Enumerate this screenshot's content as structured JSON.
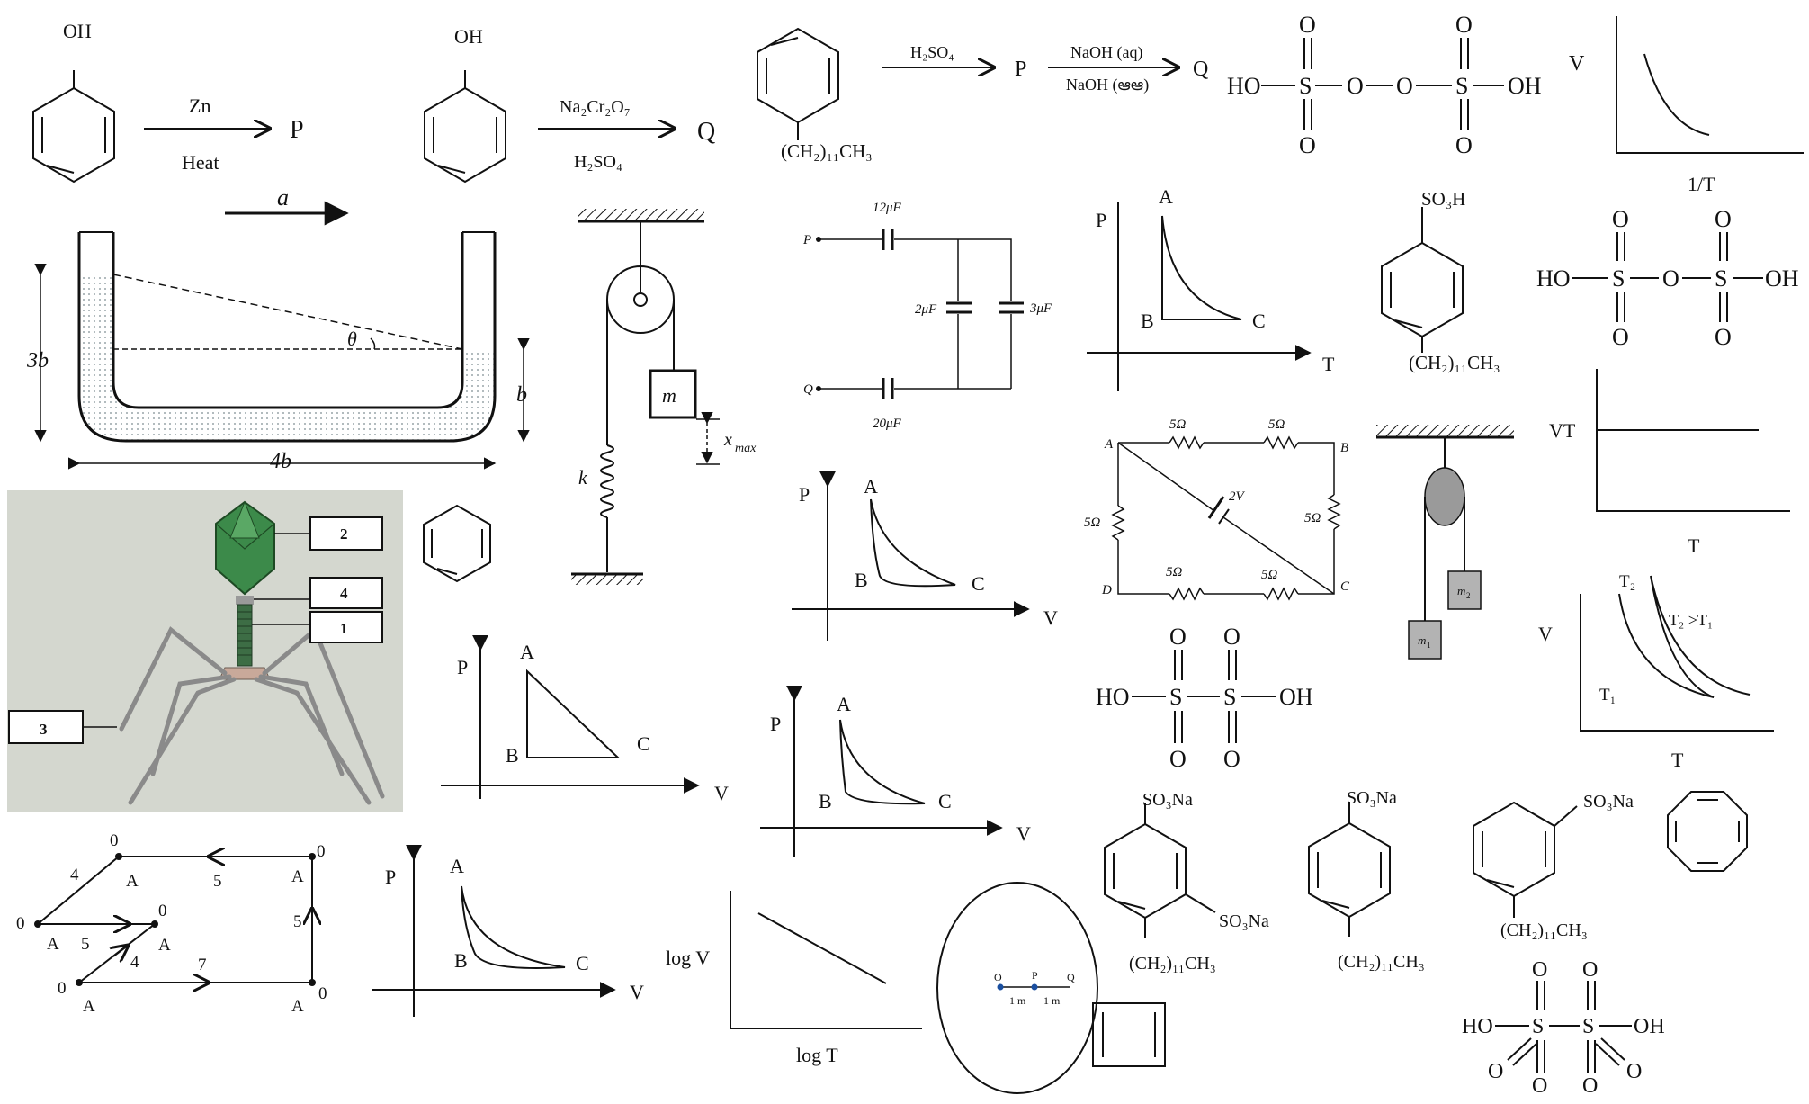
{
  "reactions": {
    "r1": {
      "reactant": "OH",
      "top": "Zn",
      "bottom": "Heat",
      "product": "P"
    },
    "r2": {
      "reactant": "OH",
      "top": "Na₂Cr₂O₇",
      "bottom": "H₂SO₄",
      "product": "Q"
    },
    "r3": {
      "substituent": "(CH₂)₁₁CH₃",
      "reagent": "H₂SO₄",
      "p": "P",
      "top": "NaOH (aq)",
      "bottom": "NaOH (ఆఆ)",
      "q": "Q"
    }
  },
  "sulfur_acids": {
    "peroxy": {
      "ho": "HO",
      "oh": "OH",
      "s": "S",
      "o": "O"
    },
    "pyro": {
      "ho": "HO",
      "oh": "OH",
      "s": "S",
      "o": "O"
    },
    "dithionic1": {
      "ho": "HO",
      "oh": "OH",
      "s": "S",
      "o": "O"
    },
    "dithionic2": {
      "ho": "HO",
      "oh": "OH",
      "s": "S",
      "o": "O"
    }
  },
  "graphs": {
    "v_vs_invT": {
      "y": "V",
      "x": "1/T"
    },
    "vt_vs_t": {
      "y": "VT",
      "x": "T"
    },
    "v_vs_t_isobars": {
      "y": "V",
      "x": "T",
      "t2": "T₂",
      "t1": "T₁",
      "note": "T₂ >T₁"
    },
    "logv_logt": {
      "y": "log V",
      "x": "log T"
    },
    "pt_cycle": {
      "y": "P",
      "x": "T",
      "a": "A",
      "b": "B",
      "c": "C"
    },
    "pv_cycle1": {
      "y": "P",
      "x": "V",
      "a": "A",
      "b": "B",
      "c": "C"
    },
    "pv_triangle": {
      "y": "P",
      "x": "V",
      "a": "A",
      "b": "B",
      "c": "C"
    },
    "pv_cycle2": {
      "y": "P",
      "x": "V",
      "a": "A",
      "b": "B",
      "c": "C"
    },
    "pv_cycle3": {
      "y": "P",
      "x": "V",
      "a": "A",
      "b": "B",
      "c": "C"
    }
  },
  "tube": {
    "accel": "a",
    "h_left": "3b",
    "h_right": "b",
    "width": "4b",
    "angle": "θ"
  },
  "spring_pulley": {
    "mass": "m",
    "spring": "k",
    "disp": "x",
    "disp_sub": "max"
  },
  "capacitors": {
    "p": "P",
    "q": "Q",
    "c1": "12μF",
    "c2": "2μF",
    "c3": "3μF",
    "c4": "20μF"
  },
  "resistor_net": {
    "r": "5Ω",
    "emf": "2V",
    "a": "A",
    "b": "B",
    "c": "C",
    "d": "D"
  },
  "atwood": {
    "m1": "m",
    "m1_sub": "1",
    "m2": "m",
    "m2_sub": "2"
  },
  "sulfonates": {
    "acid": {
      "top": "SO₃H",
      "bottom": "(CH₂)₁₁CH₃"
    },
    "di_sodium": {
      "top": "SO₃Na",
      "side": "SO₃Na",
      "bottom": "(CH₂)₁₁CH₃"
    },
    "para_sodium": {
      "top": "SO₃Na",
      "bottom": "(CH₂)₁₁CH₃"
    },
    "meta_sodium": {
      "top": "SO₃Na",
      "bottom": "(CH₂)₁₁CH₃"
    }
  },
  "phage": {
    "labels": [
      "2",
      "4",
      "1",
      "3"
    ]
  },
  "network_graph": {
    "nodes": [
      "0",
      "0",
      "0",
      "0",
      "0",
      "0"
    ],
    "node_tags": [
      "A",
      "A",
      "A",
      "A",
      "A",
      "A"
    ],
    "edges": [
      "4",
      "5",
      "5",
      "4",
      "7",
      "5"
    ]
  },
  "circle_diagram": {
    "o": "O",
    "p": "P",
    "q": "Q",
    "d1": "1 m",
    "d2": "1 m"
  }
}
